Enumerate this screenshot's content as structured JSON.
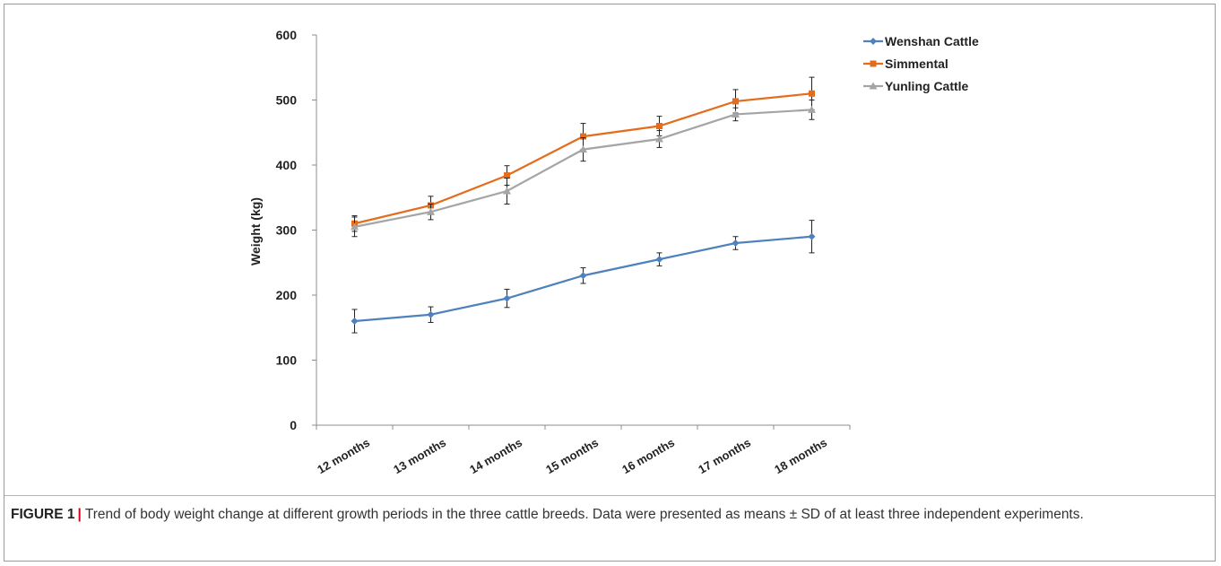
{
  "caption": {
    "label": "FIGURE 1",
    "separator": "|",
    "text": "Trend of body weight change at different growth periods in the three cattle breeds. Data were presented as means ± SD of at least three independent experiments."
  },
  "chart_data": {
    "type": "line",
    "title": "",
    "xlabel": "",
    "ylabel": "Weight (kg)",
    "ylim": [
      0,
      600
    ],
    "yticks": [
      0,
      100,
      200,
      300,
      400,
      500,
      600
    ],
    "grid": false,
    "legend_position": "top-right",
    "categories": [
      "12 months",
      "13 months",
      "14 months",
      "15 months",
      "16 months",
      "17 months",
      "18 months"
    ],
    "series": [
      {
        "name": "Wenshan Cattle",
        "color": "#4f81bd",
        "marker": "diamond",
        "values": [
          160,
          170,
          195,
          230,
          255,
          280,
          290
        ],
        "errors": [
          18,
          12,
          14,
          12,
          10,
          10,
          25
        ]
      },
      {
        "name": "Simmental",
        "color": "#e46c1d",
        "marker": "square",
        "values": [
          310,
          338,
          384,
          444,
          460,
          498,
          510
        ],
        "errors": [
          12,
          14,
          15,
          20,
          15,
          18,
          25
        ]
      },
      {
        "name": "Yunling Cattle",
        "color": "#a5a5a5",
        "marker": "triangle",
        "values": [
          305,
          328,
          360,
          424,
          440,
          478,
          485
        ],
        "errors": [
          15,
          12,
          20,
          18,
          13,
          10,
          15
        ]
      }
    ]
  }
}
